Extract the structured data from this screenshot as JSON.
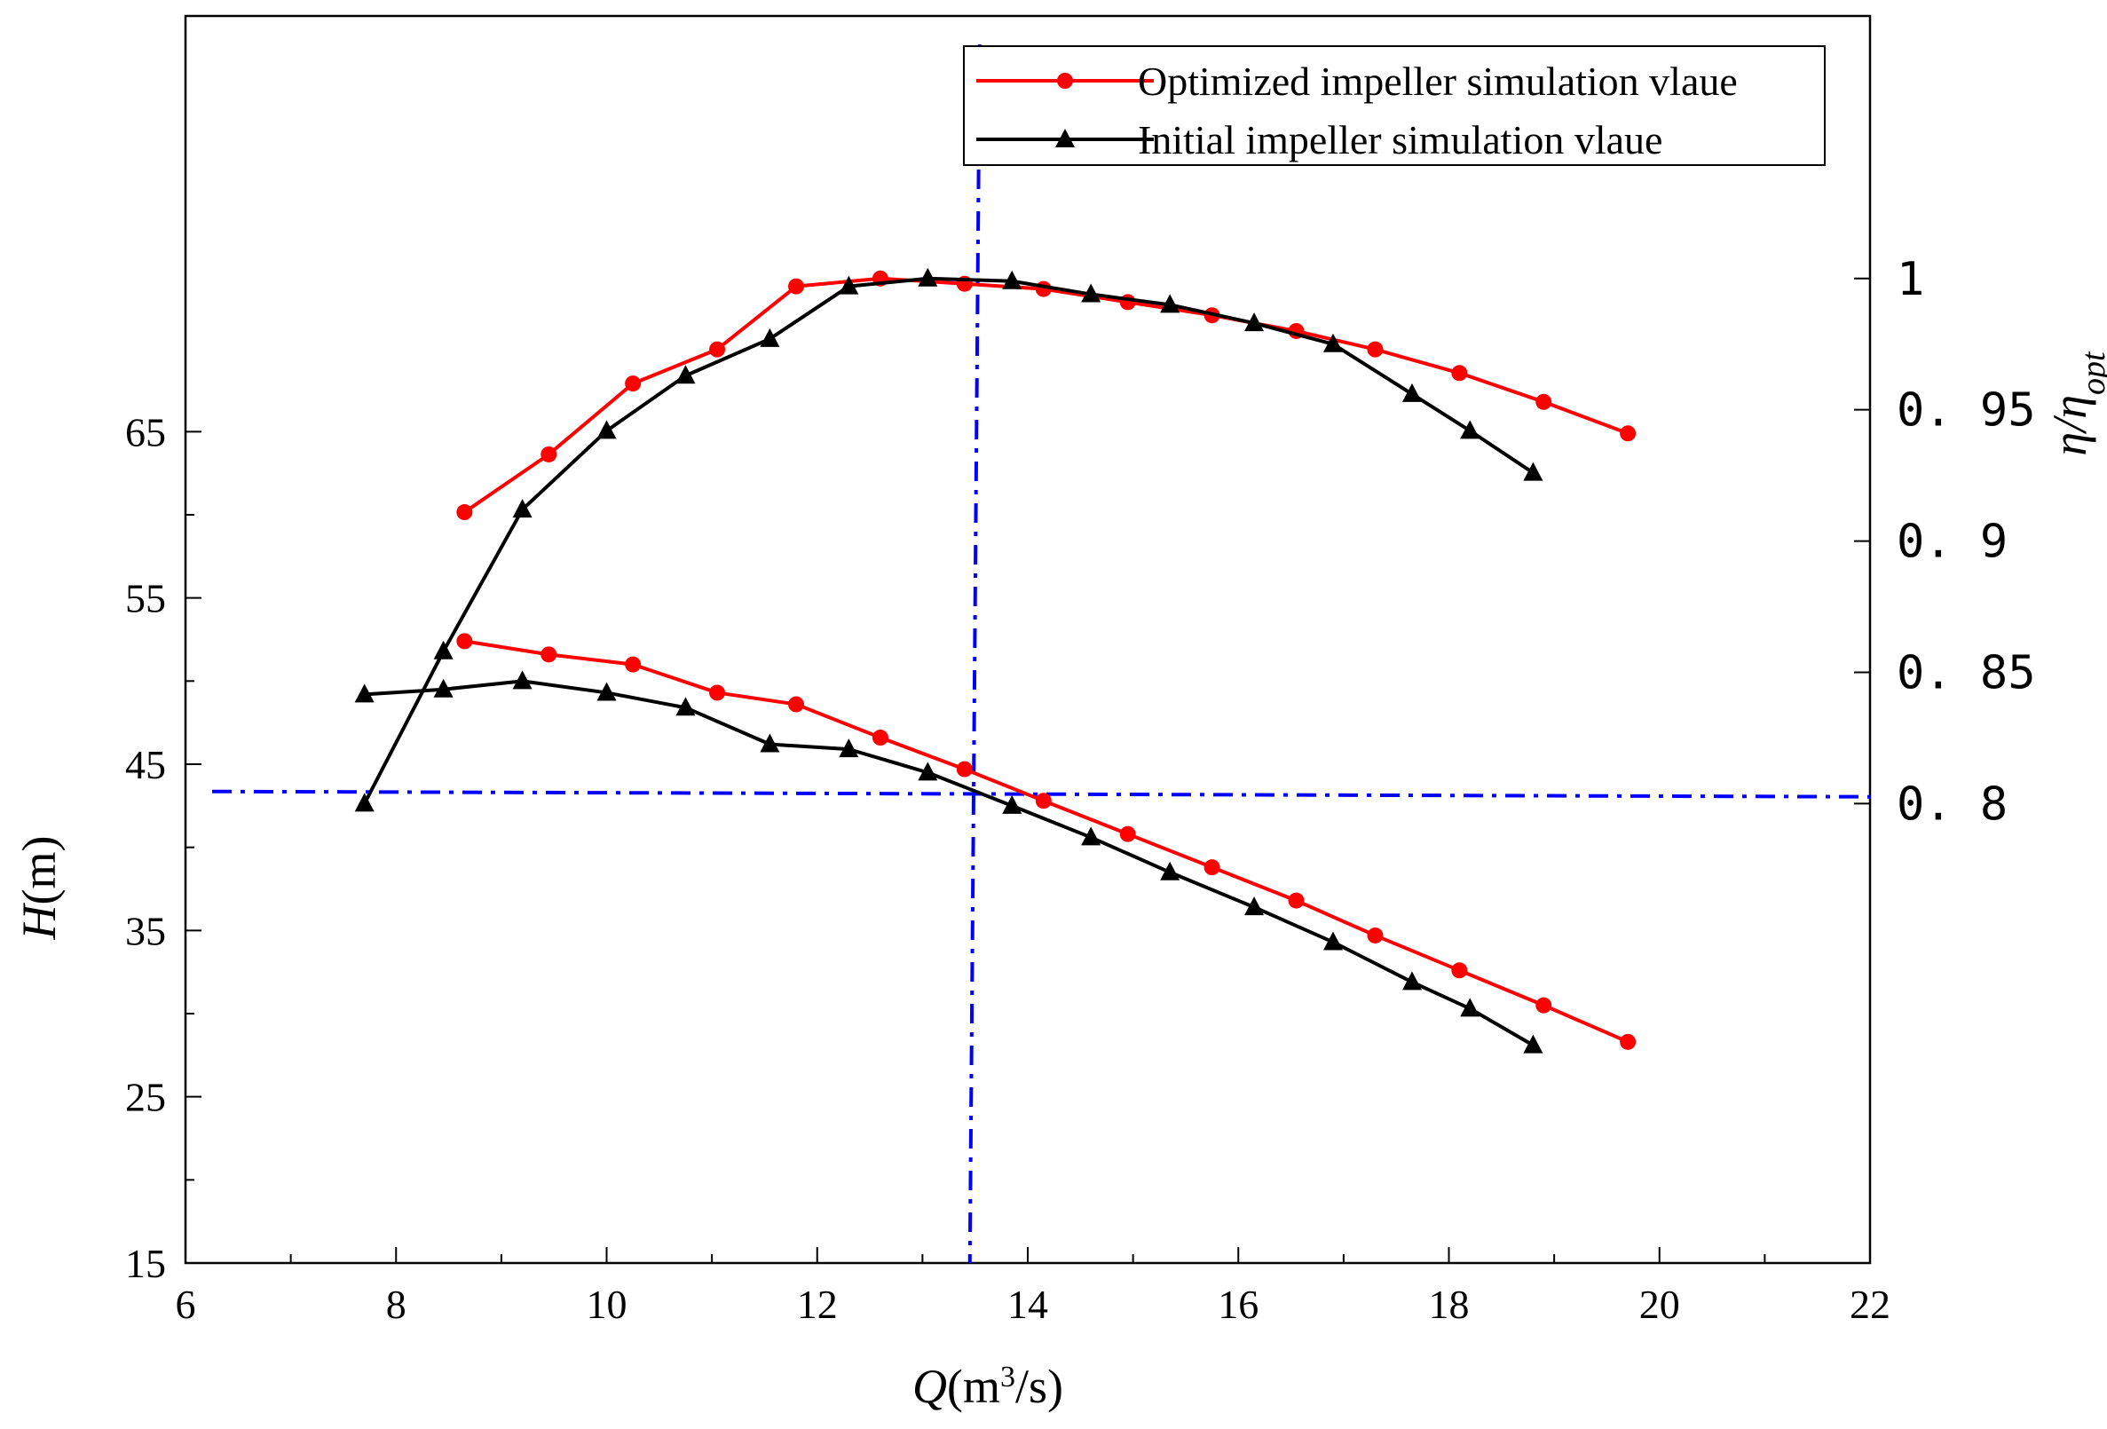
{
  "chart_data": {
    "type": "line",
    "x_axis": {
      "label_var": "Q",
      "label_unit_pre": "(m",
      "label_unit_sup": "3",
      "label_unit_post": "/s)",
      "range": [
        6,
        22
      ],
      "ticks": [
        6,
        8,
        10,
        12,
        14,
        16,
        18,
        20,
        22
      ],
      "tick_labels": [
        "6",
        "8",
        "10",
        "12",
        "14",
        "16",
        "18",
        "20",
        "22"
      ]
    },
    "y_left": {
      "label_var": "H",
      "label_unit": "(m)",
      "range": [
        15,
        90
      ],
      "ticks": [
        15,
        25,
        35,
        45,
        55,
        65
      ],
      "tick_labels": [
        "15",
        "25",
        "35",
        "45",
        "55",
        "65"
      ]
    },
    "y_right": {
      "label": "η/η",
      "label_sub": "opt",
      "range": [
        0.625,
        1.1
      ],
      "ticks": [
        0.8,
        0.85,
        0.9,
        0.95,
        1.0
      ],
      "tick_labels": [
        "0. 8",
        "0. 85",
        "0. 9",
        "0. 95",
        "1"
      ]
    },
    "legend": {
      "position": "top-right",
      "entries": [
        "Optimized impeller simulation vlaue",
        "Initial impeller simulation vlaue"
      ]
    },
    "series": [
      {
        "name": "Optimized impeller simulation vlaue",
        "axis": "right",
        "color": "#ff0000",
        "marker": "circle",
        "x": [
          8.65,
          9.45,
          10.25,
          11.05,
          11.8,
          12.6,
          13.4,
          14.15,
          14.95,
          15.75,
          16.55,
          17.3,
          18.1,
          18.9,
          19.7
        ],
        "y": [
          0.911,
          0.933,
          0.96,
          0.973,
          0.997,
          1.0,
          0.998,
          0.996,
          0.991,
          0.986,
          0.98,
          0.973,
          0.964,
          0.953,
          0.941
        ]
      },
      {
        "name": "Initial impeller simulation vlaue",
        "axis": "right",
        "color": "#000000",
        "marker": "triangle",
        "x": [
          7.7,
          8.45,
          9.2,
          10.0,
          10.75,
          11.55,
          12.3,
          13.05,
          13.85,
          14.6,
          15.35,
          16.15,
          16.9,
          17.65,
          18.2,
          18.8
        ],
        "y": [
          0.8,
          0.858,
          0.912,
          0.942,
          0.963,
          0.977,
          0.997,
          1.0,
          0.999,
          0.994,
          0.99,
          0.983,
          0.975,
          0.956,
          0.942,
          0.926
        ]
      },
      {
        "name": "Optimized impeller simulation vlaue",
        "axis": "left",
        "color": "#ff0000",
        "marker": "circle",
        "x": [
          8.65,
          9.45,
          10.25,
          11.05,
          11.8,
          12.6,
          13.4,
          14.15,
          14.95,
          15.75,
          16.55,
          17.3,
          18.1,
          18.9,
          19.7
        ],
        "y": [
          52.4,
          51.6,
          51.0,
          49.3,
          48.6,
          46.6,
          44.7,
          42.8,
          40.8,
          38.8,
          36.8,
          34.7,
          32.6,
          30.5,
          28.3
        ]
      },
      {
        "name": "Initial impeller simulation vlaue",
        "axis": "left",
        "color": "#000000",
        "marker": "triangle",
        "x": [
          7.7,
          8.45,
          9.2,
          10.0,
          10.75,
          11.55,
          12.3,
          13.05,
          13.85,
          14.6,
          15.35,
          16.15,
          16.9,
          17.65,
          18.2,
          18.8
        ],
        "y": [
          49.2,
          49.5,
          50.0,
          49.3,
          48.4,
          46.2,
          45.9,
          44.5,
          42.5,
          40.6,
          38.5,
          36.4,
          34.3,
          31.9,
          30.3,
          28.1
        ]
      }
    ],
    "reference_lines": {
      "vertical_q": 13.45,
      "horizontal_h": 43.2,
      "color": "#0000ff",
      "style": "dash-dot"
    }
  }
}
